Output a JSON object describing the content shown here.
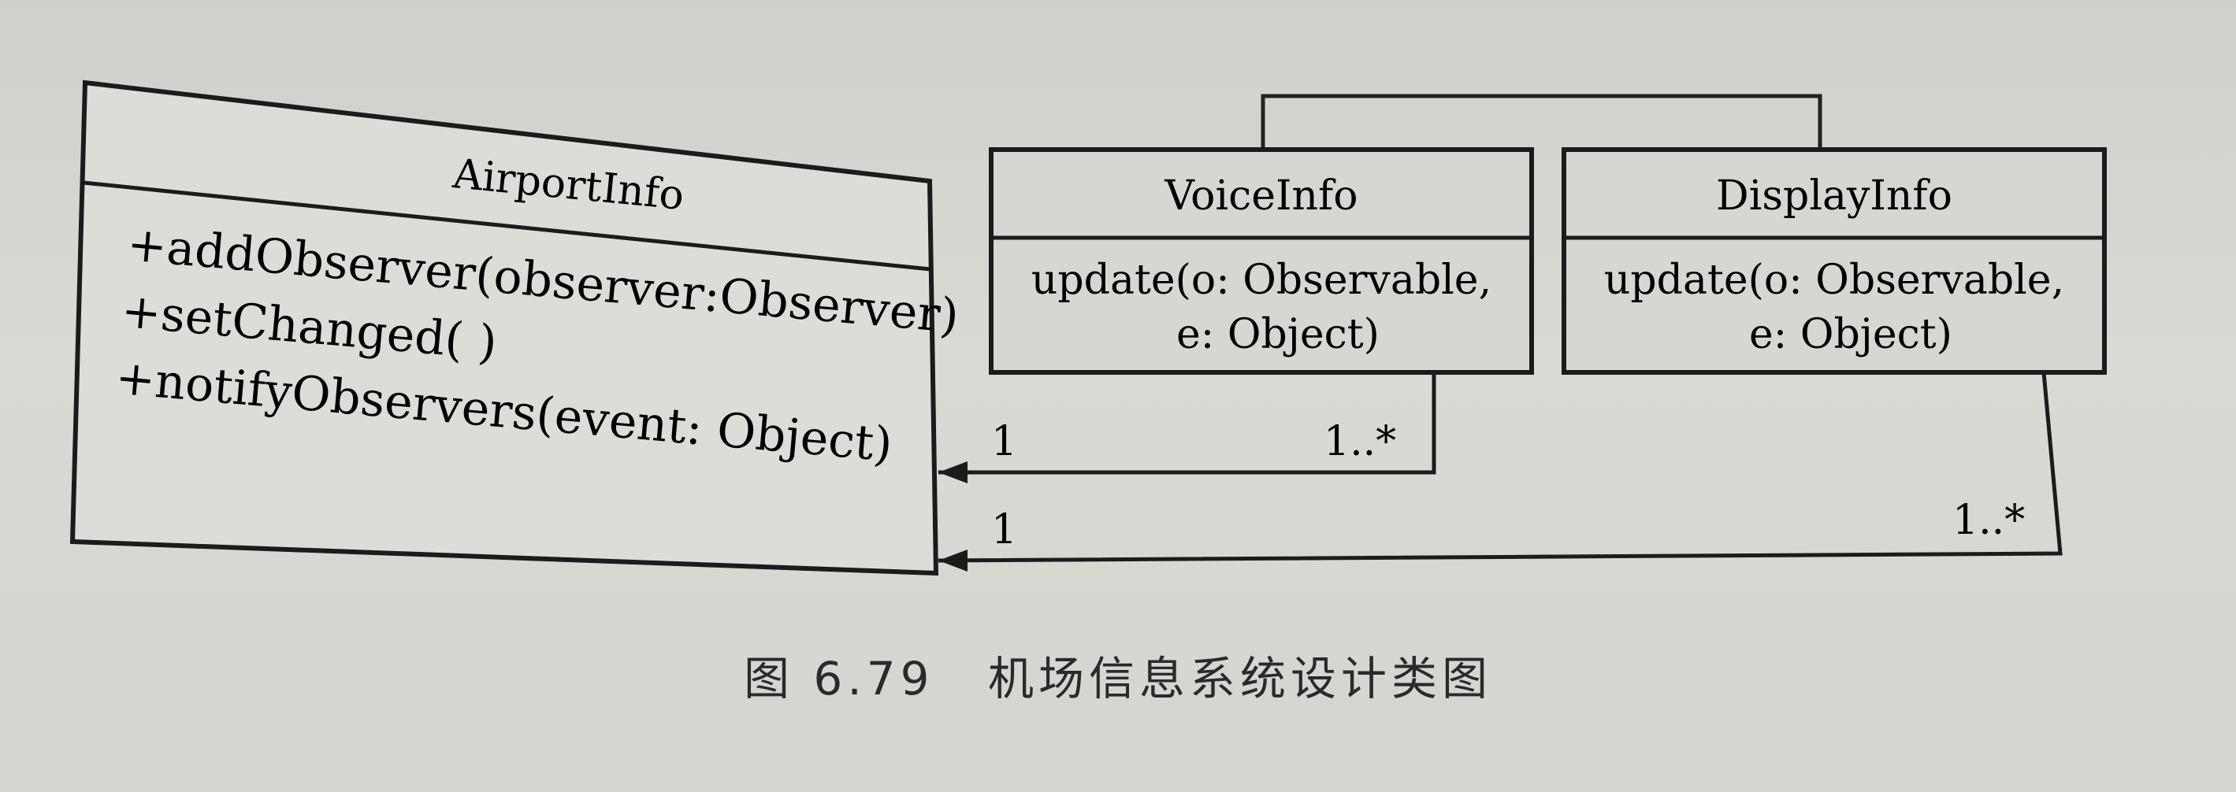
{
  "classes": {
    "airport": {
      "name": "AirportInfo",
      "methods": [
        "+addObserver(observer:Observer)",
        "+setChanged( )",
        "+notifyObservers(event: Object)"
      ]
    },
    "voice": {
      "name": "VoiceInfo",
      "method_line1": "update(o: Observable,",
      "method_line2": "e: Object)"
    },
    "display": {
      "name": "DisplayInfo",
      "method_line1": "update(o: Observable,",
      "method_line2": "e: Object)"
    }
  },
  "associations": {
    "voice": {
      "source_multiplicity": "1",
      "target_multiplicity": "1..*"
    },
    "display": {
      "source_multiplicity": "1",
      "target_multiplicity": "1..*"
    }
  },
  "caption": {
    "figure_number": "图 6.79",
    "title": "机场信息系统设计类图"
  }
}
